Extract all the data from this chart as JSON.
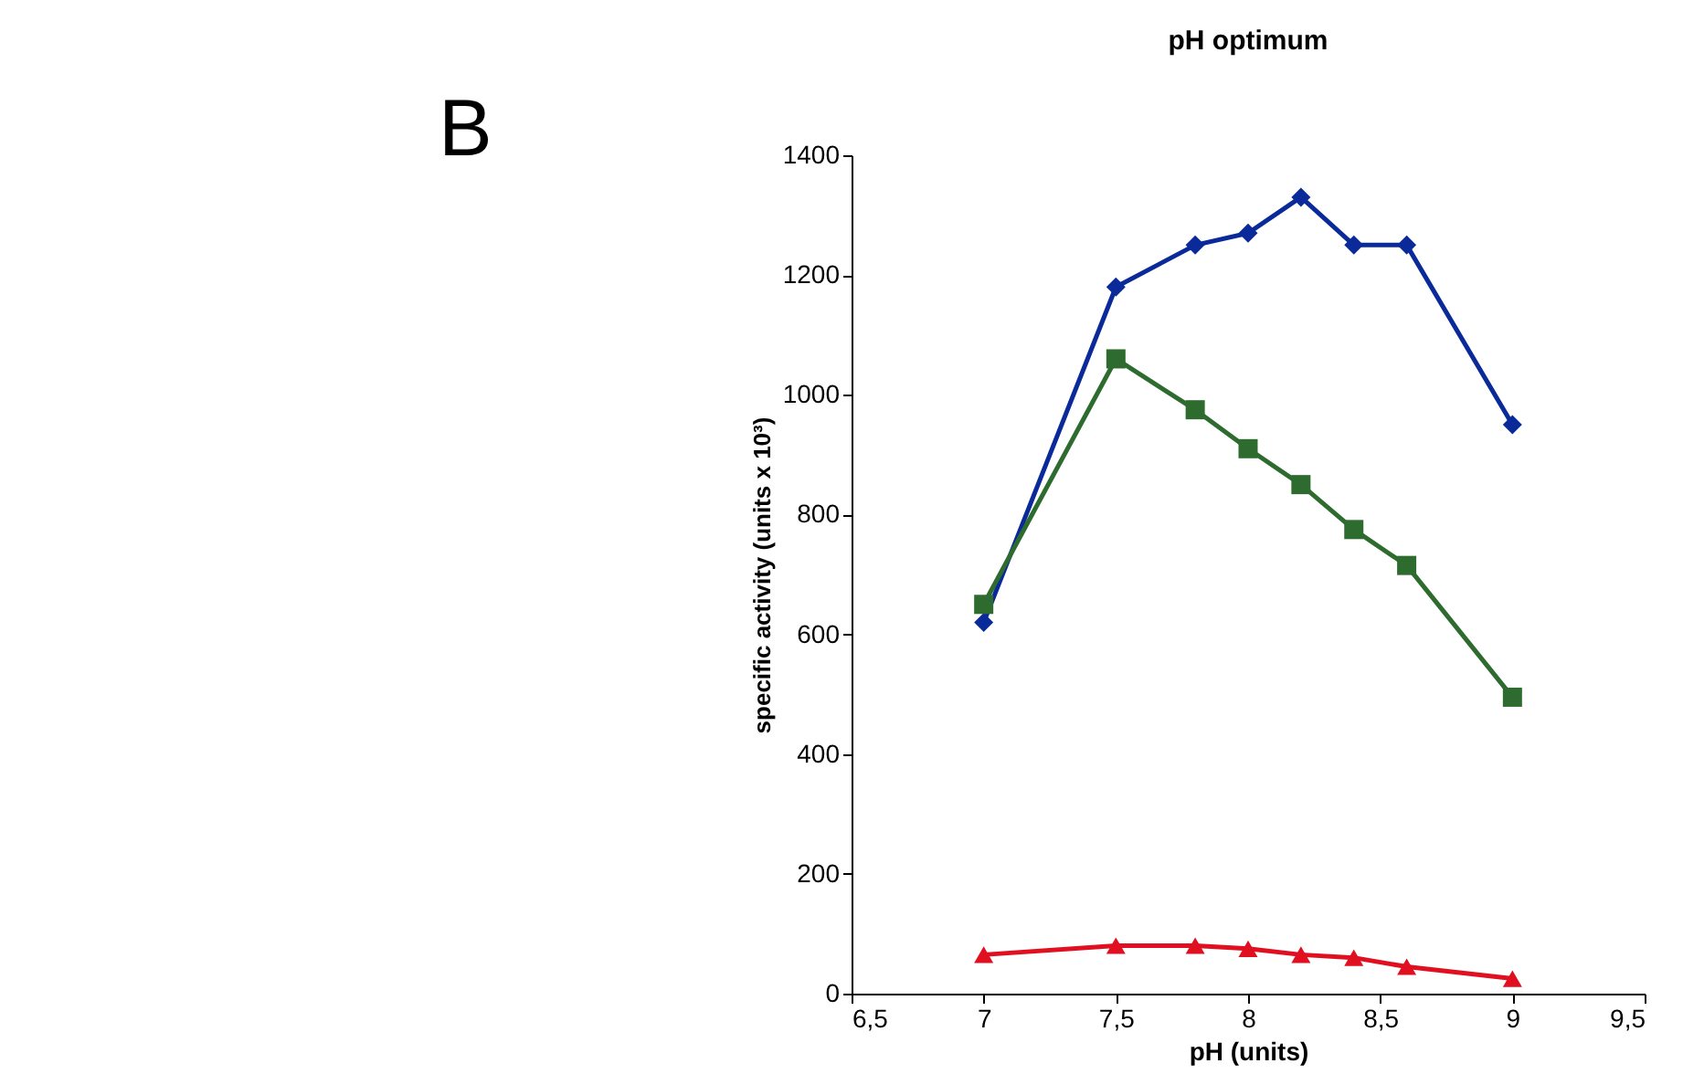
{
  "chart_data": {
    "type": "line",
    "title": "pH optimum",
    "xlabel": "pH (units)",
    "ylabel": "specific activity (units x 10³)",
    "annotations": [
      "B"
    ],
    "xlim": [
      6.5,
      9.5
    ],
    "xticks": [
      {
        "value": 6.5,
        "label": "6,5"
      },
      7,
      {
        "value": 7.5,
        "label": "7,5"
      },
      8,
      {
        "value": 8.5,
        "label": "8,5"
      },
      9,
      {
        "value": 9.5,
        "label": "9,5"
      }
    ],
    "ylim": [
      0,
      1400
    ],
    "yticks": [
      0,
      200,
      400,
      600,
      800,
      1000,
      1200,
      1400
    ],
    "grid": false,
    "x": [
      7,
      7.5,
      7.8,
      8,
      8.2,
      8.4,
      8.6,
      9
    ],
    "series": [
      {
        "color": "#0a2a9a",
        "marker": "diamond",
        "values": [
          620,
          1180,
          1250,
          1270,
          1330,
          1250,
          1250,
          950
        ]
      },
      {
        "color": "#2e6b2e",
        "marker": "square",
        "values": [
          650,
          1060,
          975,
          910,
          850,
          775,
          715,
          495
        ]
      },
      {
        "color": "#e01020",
        "marker": "triangle",
        "values": [
          65,
          80,
          80,
          75,
          65,
          60,
          45,
          25
        ]
      }
    ]
  }
}
